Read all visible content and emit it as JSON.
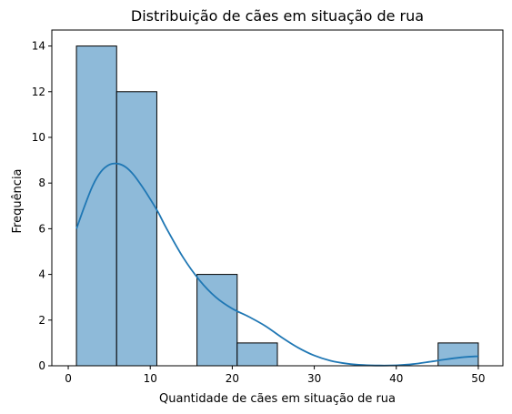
{
  "chart_data": {
    "type": "histogram",
    "title": "Distribuição de cães em situação de rua",
    "xlabel": "Quantidade de cães em situação de rua",
    "ylabel": "Frequência",
    "xlim": [
      -2.0,
      53.0
    ],
    "ylim": [
      0,
      14.7
    ],
    "bins": [
      {
        "x0": 1.0,
        "x1": 5.9,
        "count": 14
      },
      {
        "x0": 5.9,
        "x1": 10.8,
        "count": 12
      },
      {
        "x0": 10.8,
        "x1": 15.7,
        "count": 0
      },
      {
        "x0": 15.7,
        "x1": 20.6,
        "count": 4
      },
      {
        "x0": 20.6,
        "x1": 25.5,
        "count": 1
      },
      {
        "x0": 25.5,
        "x1": 30.4,
        "count": 0
      },
      {
        "x0": 30.4,
        "x1": 35.3,
        "count": 0
      },
      {
        "x0": 35.3,
        "x1": 40.2,
        "count": 0
      },
      {
        "x0": 40.2,
        "x1": 45.1,
        "count": 0
      },
      {
        "x0": 45.1,
        "x1": 50.0,
        "count": 1
      }
    ],
    "kde": {
      "x": [
        1,
        2,
        3,
        4,
        5,
        6,
        7,
        8,
        9,
        10,
        11,
        12,
        14,
        16,
        18,
        20,
        22,
        24,
        26,
        28,
        30,
        32,
        34,
        36,
        38,
        40,
        42,
        44,
        46,
        48,
        50
      ],
      "y": [
        6.0,
        7.0,
        7.9,
        8.5,
        8.8,
        8.85,
        8.7,
        8.35,
        7.85,
        7.3,
        6.7,
        6.0,
        4.75,
        3.75,
        3.0,
        2.5,
        2.15,
        1.75,
        1.25,
        0.8,
        0.45,
        0.22,
        0.09,
        0.03,
        0.01,
        0.02,
        0.07,
        0.17,
        0.28,
        0.37,
        0.42
      ]
    },
    "xticks": [
      0,
      10,
      20,
      30,
      40,
      50
    ],
    "yticks": [
      0,
      2,
      4,
      6,
      8,
      10,
      12,
      14
    ],
    "grid": false,
    "colors": {
      "bar_fill": "#8ebad9",
      "bar_edge": "#000000",
      "kde_line": "#1f77b4"
    }
  }
}
